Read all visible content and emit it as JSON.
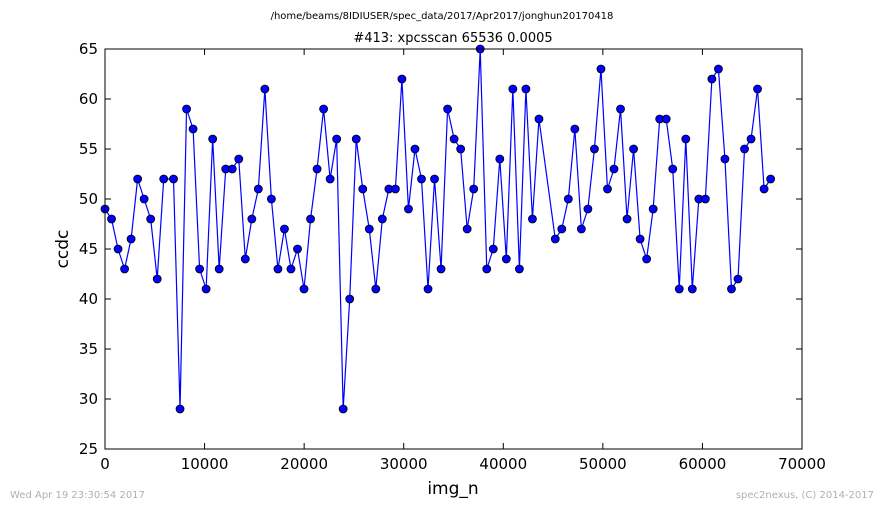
{
  "chart_data": {
    "type": "line",
    "subtitle": "/home/beams/8IDIUSER/spec_data/2017/Apr2017/jonghun20170418",
    "title": "#413: xpcsscan 65536 0.0005",
    "xlabel": "img_n",
    "ylabel": "ccdc",
    "xlim": [
      0,
      70000
    ],
    "ylim": [
      25,
      65
    ],
    "xticks": [
      0,
      10000,
      20000,
      30000,
      40000,
      50000,
      60000,
      70000
    ],
    "yticks": [
      25,
      30,
      35,
      40,
      45,
      50,
      55,
      60,
      65
    ],
    "grid": false,
    "legend": "none",
    "series": [
      {
        "color": "#0000ff",
        "marker": "circle",
        "points": [
          [
            0,
            49
          ],
          [
            655,
            48
          ],
          [
            1310,
            45
          ],
          [
            1966,
            43
          ],
          [
            2621,
            46
          ],
          [
            3277,
            52
          ],
          [
            3932,
            50
          ],
          [
            4587,
            48
          ],
          [
            5243,
            42
          ],
          [
            5898,
            52
          ],
          [
            6880,
            52
          ],
          [
            7536,
            29
          ],
          [
            8191,
            59
          ],
          [
            8847,
            57
          ],
          [
            9502,
            43
          ],
          [
            10157,
            41
          ],
          [
            10813,
            56
          ],
          [
            11468,
            43
          ],
          [
            12124,
            53
          ],
          [
            12779,
            53
          ],
          [
            13434,
            54
          ],
          [
            14090,
            44
          ],
          [
            14745,
            48
          ],
          [
            15401,
            51
          ],
          [
            16056,
            61
          ],
          [
            16711,
            50
          ],
          [
            17367,
            43
          ],
          [
            18022,
            47
          ],
          [
            18678,
            43
          ],
          [
            19333,
            45
          ],
          [
            19988,
            41
          ],
          [
            20644,
            48
          ],
          [
            21299,
            53
          ],
          [
            21955,
            59
          ],
          [
            22610,
            52
          ],
          [
            23265,
            56
          ],
          [
            23921,
            29
          ],
          [
            24576,
            40
          ],
          [
            25232,
            56
          ],
          [
            25887,
            51
          ],
          [
            26542,
            47
          ],
          [
            27198,
            41
          ],
          [
            27853,
            48
          ],
          [
            28509,
            51
          ],
          [
            29164,
            51
          ],
          [
            29819,
            62
          ],
          [
            30475,
            49
          ],
          [
            31130,
            55
          ],
          [
            31786,
            52
          ],
          [
            32441,
            41
          ],
          [
            33096,
            52
          ],
          [
            33752,
            43
          ],
          [
            34407,
            59
          ],
          [
            35063,
            56
          ],
          [
            35718,
            55
          ],
          [
            36373,
            47
          ],
          [
            37029,
            51
          ],
          [
            37684,
            65
          ],
          [
            38340,
            43
          ],
          [
            38995,
            45
          ],
          [
            39650,
            54
          ],
          [
            40306,
            44
          ],
          [
            40961,
            61
          ],
          [
            41617,
            43
          ],
          [
            42272,
            61
          ],
          [
            42927,
            48
          ],
          [
            43583,
            58
          ],
          [
            45221,
            46
          ],
          [
            45876,
            47
          ],
          [
            46532,
            50
          ],
          [
            47187,
            57
          ],
          [
            47842,
            47
          ],
          [
            48498,
            49
          ],
          [
            49153,
            55
          ],
          [
            49809,
            63
          ],
          [
            50464,
            51
          ],
          [
            51119,
            53
          ],
          [
            51775,
            59
          ],
          [
            52430,
            48
          ],
          [
            53086,
            55
          ],
          [
            53741,
            46
          ],
          [
            54396,
            44
          ],
          [
            55052,
            49
          ],
          [
            55707,
            58
          ],
          [
            56363,
            58
          ],
          [
            57018,
            53
          ],
          [
            57673,
            41
          ],
          [
            58329,
            56
          ],
          [
            58984,
            41
          ],
          [
            59640,
            50
          ],
          [
            60295,
            50
          ],
          [
            60950,
            62
          ],
          [
            61606,
            63
          ],
          [
            62261,
            54
          ],
          [
            62917,
            41
          ],
          [
            63572,
            42
          ],
          [
            64227,
            55
          ],
          [
            64883,
            56
          ],
          [
            65538,
            61
          ],
          [
            66194,
            51
          ],
          [
            66849,
            52
          ]
        ]
      }
    ]
  },
  "footer": {
    "timestamp": "Wed Apr 19 23:30:54 2017",
    "credit": "spec2nexus, (C) 2014-2017"
  },
  "colors": {
    "series": "#0000ff",
    "footer_text": "#b0b0b0",
    "frame": "#000000"
  }
}
